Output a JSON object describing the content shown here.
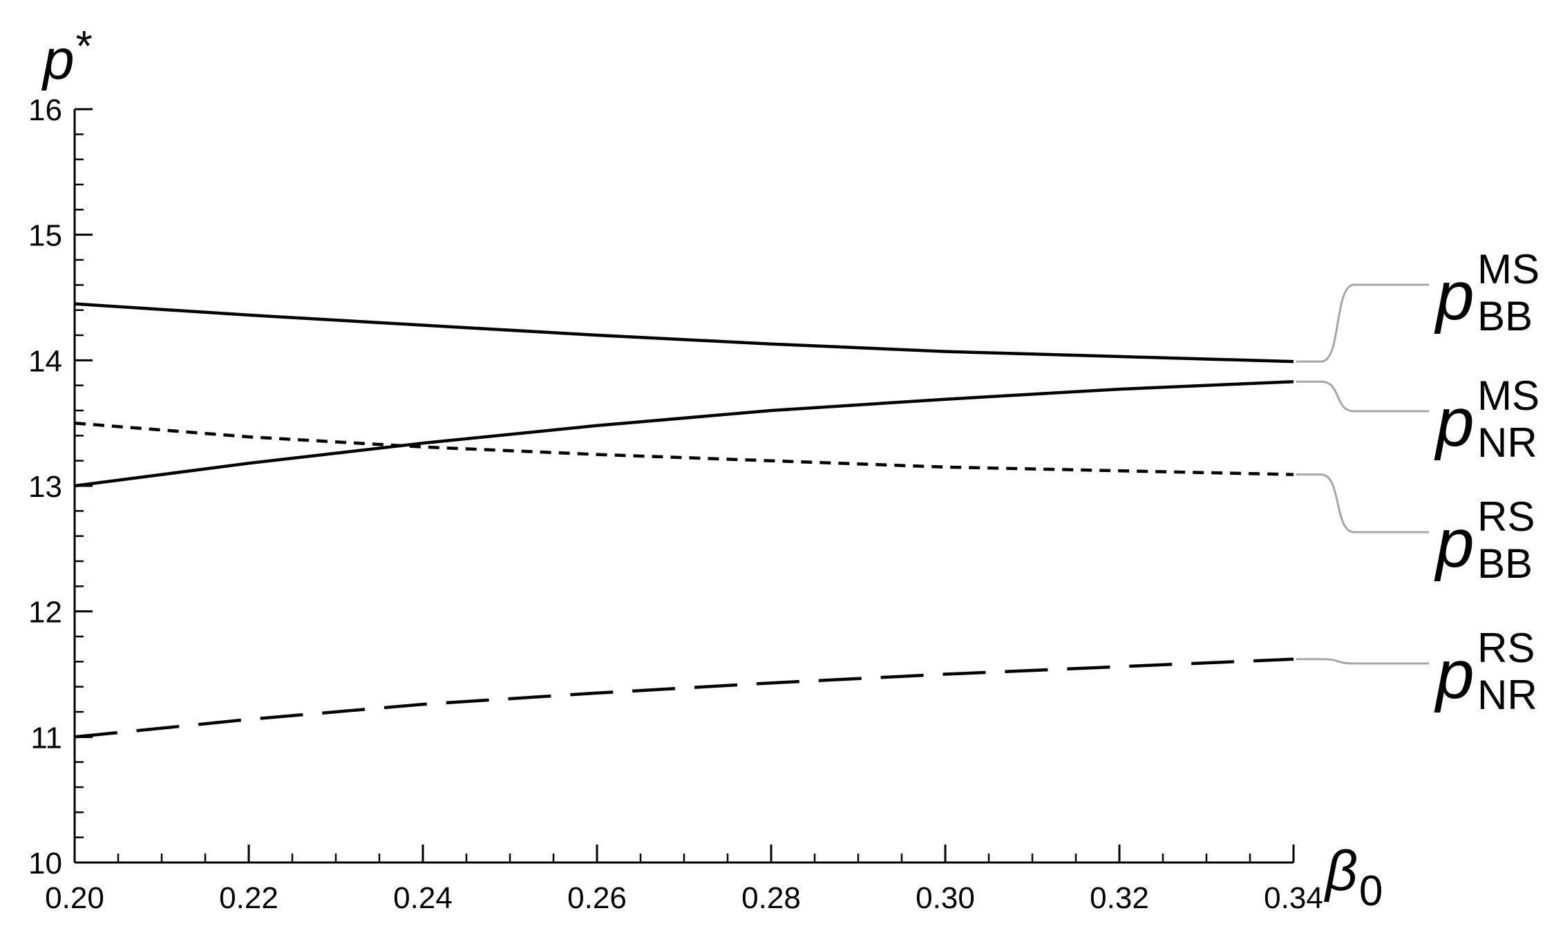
{
  "chart_data": {
    "type": "line",
    "title": "",
    "xlabel": {
      "base": "β",
      "sub": "0"
    },
    "ylabel": {
      "base": "p",
      "sup": "*"
    },
    "xlim": [
      0.2,
      0.34
    ],
    "ylim": [
      10,
      16
    ],
    "x_ticks": [
      0.2,
      0.22,
      0.24,
      0.26,
      0.28,
      0.3,
      0.32,
      0.34
    ],
    "x_tick_labels": [
      "0.20",
      "0.22",
      "0.24",
      "0.26",
      "0.28",
      "0.30",
      "0.32",
      "0.34"
    ],
    "y_ticks": [
      10,
      11,
      12,
      13,
      14,
      15,
      16
    ],
    "y_tick_labels": [
      "10",
      "11",
      "12",
      "13",
      "14",
      "15",
      "16"
    ],
    "x_minor_step": 0.005,
    "y_minor_step": 0.2,
    "grid": false,
    "legend": "right-side callout labels",
    "series": [
      {
        "id": "bb-ms",
        "label": {
          "base": "p",
          "sup": "MS",
          "sub": "BB"
        },
        "style": "solid",
        "x": [
          0.2,
          0.22,
          0.24,
          0.26,
          0.28,
          0.3,
          0.32,
          0.34
        ],
        "y": [
          14.45,
          14.36,
          14.28,
          14.2,
          14.13,
          14.07,
          14.03,
          13.99
        ]
      },
      {
        "id": "nr-ms",
        "label": {
          "base": "p",
          "sup": "MS",
          "sub": "NR"
        },
        "style": "solid",
        "x": [
          0.2,
          0.22,
          0.24,
          0.26,
          0.28,
          0.3,
          0.32,
          0.34
        ],
        "y": [
          13.0,
          13.18,
          13.34,
          13.48,
          13.6,
          13.69,
          13.77,
          13.83
        ]
      },
      {
        "id": "bb-rs",
        "label": {
          "base": "p",
          "sup": "RS",
          "sub": "BB"
        },
        "style": "short-dash",
        "x": [
          0.2,
          0.22,
          0.24,
          0.26,
          0.28,
          0.3,
          0.32,
          0.34
        ],
        "y": [
          13.5,
          13.39,
          13.31,
          13.25,
          13.2,
          13.15,
          13.12,
          13.09
        ]
      },
      {
        "id": "nr-rs",
        "label": {
          "base": "p",
          "sup": "RS",
          "sub": "NR"
        },
        "style": "long-dash",
        "x": [
          0.2,
          0.22,
          0.24,
          0.26,
          0.28,
          0.3,
          0.32,
          0.34
        ],
        "y": [
          11.0,
          11.14,
          11.26,
          11.35,
          11.43,
          11.5,
          11.56,
          11.62
        ]
      }
    ],
    "colors": {
      "series": "#000000",
      "axis": "#000000",
      "leader": "#a6a6a6"
    }
  }
}
